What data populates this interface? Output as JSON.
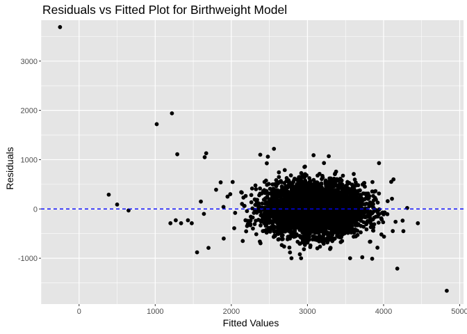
{
  "chart_data": {
    "type": "scatter",
    "title": "Residuals vs Fitted Plot for Birthweight Model",
    "xlabel": "Fitted Values",
    "ylabel": "Residuals",
    "xlim": [
      -500,
      5050
    ],
    "ylim": [
      -1930,
      3830
    ],
    "x_ticks": [
      0,
      1000,
      2000,
      3000,
      4000,
      5000
    ],
    "x_tick_labels": [
      "0",
      "1000",
      "2000",
      "3000",
      "4000",
      "5000"
    ],
    "y_ticks": [
      -1000,
      0,
      1000,
      2000,
      3000
    ],
    "y_tick_labels": [
      "-1000",
      "0",
      "1000",
      "2000",
      "3000"
    ],
    "grid": true,
    "panel_background": "#e5e5e5",
    "grid_color": "#ffffff",
    "point_color": "#000000",
    "reference_line": {
      "y": 0,
      "style": "dashed",
      "color": "#0000ff"
    },
    "cluster": {
      "x_center": 3100,
      "x_sd": 320,
      "y_sd": 260,
      "n_points": 4200
    },
    "points": [
      [
        -250,
        3690
      ],
      [
        390,
        290
      ],
      [
        500,
        90
      ],
      [
        650,
        -30
      ],
      [
        1020,
        1720
      ],
      [
        1220,
        1940
      ],
      [
        1290,
        1110
      ],
      [
        1650,
        1050
      ],
      [
        1670,
        1130
      ],
      [
        1860,
        540
      ],
      [
        2130,
        340
      ],
      [
        2380,
        1100
      ],
      [
        2480,
        1060
      ],
      [
        2560,
        1220
      ],
      [
        1550,
        -880
      ],
      [
        1700,
        -790
      ],
      [
        1900,
        -600
      ],
      [
        2150,
        -650
      ],
      [
        1200,
        -290
      ],
      [
        1270,
        -230
      ],
      [
        1340,
        -290
      ],
      [
        1430,
        -230
      ],
      [
        1480,
        -290
      ],
      [
        1600,
        150
      ],
      [
        1640,
        -100
      ],
      [
        4180,
        -1210
      ],
      [
        4830,
        -1660
      ],
      [
        4450,
        -290
      ],
      [
        4310,
        20
      ],
      [
        4260,
        -450
      ],
      [
        4100,
        550
      ],
      [
        4130,
        600
      ],
      [
        3850,
        -1010
      ],
      [
        3720,
        -980
      ],
      [
        3560,
        -1000
      ],
      [
        2790,
        -1000
      ],
      [
        2900,
        -920
      ],
      [
        3280,
        1070
      ],
      [
        3080,
        1090
      ],
      [
        3940,
        930
      ],
      [
        1800,
        390
      ],
      [
        1950,
        250
      ],
      [
        2050,
        -80
      ],
      [
        2250,
        -330
      ]
    ]
  }
}
